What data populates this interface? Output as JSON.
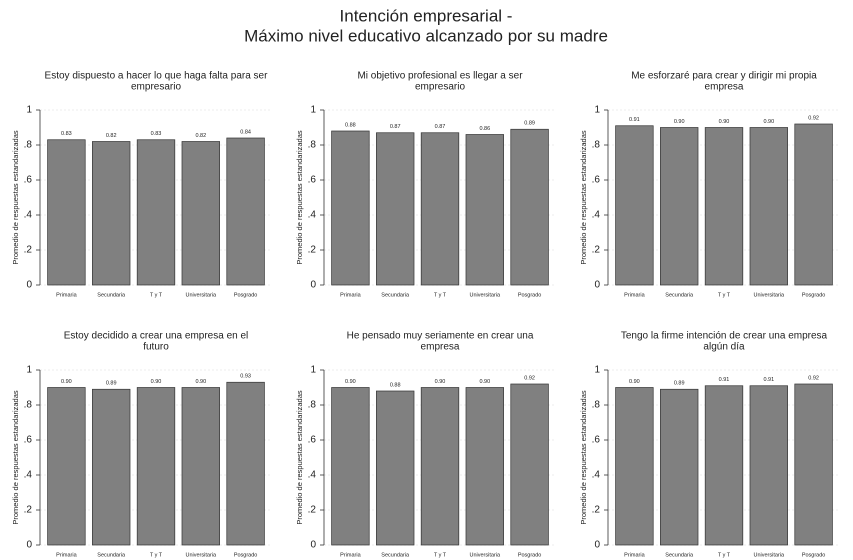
{
  "title": [
    "Intención empresarial -",
    "Máximo nivel educativo alcanzado por su madre"
  ],
  "chart_data": [
    {
      "type": "bar",
      "title": [
        "Estoy dispuesto a hacer lo que haga falta para ser",
        "empresario"
      ],
      "ylabel": "Promedio de respuestas estandarizadas",
      "categories": [
        "Primaria",
        "Secundaria",
        "T y T",
        "Universitaria",
        "Posgrado"
      ],
      "values": [
        0.83,
        0.82,
        0.83,
        0.82,
        0.84
      ],
      "value_labels": [
        "0.83",
        "0.82",
        "0.83",
        "0.82",
        "0.84"
      ],
      "color": "#808080",
      "ylim": [
        0,
        1
      ],
      "yticks": [
        0,
        {
          "value": 0.2,
          "label": ".2"
        },
        {
          "value": 0.4,
          "label": ".4"
        },
        {
          "value": 0.6,
          "label": ".6"
        },
        {
          "value": 0.8,
          "label": ".8"
        },
        1
      ],
      "grid": true
    },
    {
      "type": "bar",
      "title": [
        "Mi objetivo profesional es llegar a ser",
        "empresario"
      ],
      "ylabel": "Promedio de respuestas estandarizadas",
      "categories": [
        "Primaria",
        "Secundaria",
        "T y T",
        "Universitaria",
        "Posgrado"
      ],
      "values": [
        0.88,
        0.87,
        0.87,
        0.86,
        0.89
      ],
      "value_labels": [
        "0.88",
        "0.87",
        "0.87",
        "0.86",
        "0.89"
      ],
      "color": "#808080",
      "ylim": [
        0,
        1
      ],
      "yticks": [
        0,
        {
          "value": 0.2,
          "label": ".2"
        },
        {
          "value": 0.4,
          "label": ".4"
        },
        {
          "value": 0.6,
          "label": ".6"
        },
        {
          "value": 0.8,
          "label": ".8"
        },
        1
      ],
      "grid": true
    },
    {
      "type": "bar",
      "title": [
        "Me esforzaré para crear y dirigir mi propia",
        "empresa"
      ],
      "ylabel": "Promedio de respuestas estandarizadas",
      "categories": [
        "Primaria",
        "Secundaria",
        "T y T",
        "Universitaria",
        "Posgrado"
      ],
      "values": [
        0.91,
        0.9,
        0.9,
        0.9,
        0.92
      ],
      "value_labels": [
        "0.91",
        "0.90",
        "0.90",
        "0.90",
        "0.92"
      ],
      "color": "#808080",
      "ylim": [
        0,
        1
      ],
      "yticks": [
        0,
        {
          "value": 0.2,
          "label": ".2"
        },
        {
          "value": 0.4,
          "label": ".4"
        },
        {
          "value": 0.6,
          "label": ".6"
        },
        {
          "value": 0.8,
          "label": ".8"
        },
        1
      ],
      "grid": true
    },
    {
      "type": "bar",
      "title": [
        "Estoy decidido a crear una empresa en el",
        "futuro"
      ],
      "ylabel": "Promedio de respuestas estandarizadas",
      "categories": [
        "Primaria",
        "Secundaria",
        "T y T",
        "Universitaria",
        "Posgrado"
      ],
      "values": [
        0.9,
        0.89,
        0.9,
        0.9,
        0.93
      ],
      "value_labels": [
        "0.90",
        "0.89",
        "0.90",
        "0.90",
        "0.93"
      ],
      "color": "#808080",
      "ylim": [
        0,
        1
      ],
      "yticks": [
        0,
        {
          "value": 0.2,
          "label": ".2"
        },
        {
          "value": 0.4,
          "label": ".4"
        },
        {
          "value": 0.6,
          "label": ".6"
        },
        {
          "value": 0.8,
          "label": ".8"
        },
        1
      ],
      "grid": true
    },
    {
      "type": "bar",
      "title": [
        "He pensado muy seriamente en crear una",
        "empresa"
      ],
      "ylabel": "Promedio de respuestas estandarizadas",
      "categories": [
        "Primaria",
        "Secundaria",
        "T y T",
        "Universitaria",
        "Posgrado"
      ],
      "values": [
        0.9,
        0.88,
        0.9,
        0.9,
        0.92
      ],
      "value_labels": [
        "0.90",
        "0.88",
        "0.90",
        "0.90",
        "0.92"
      ],
      "color": "#808080",
      "ylim": [
        0,
        1
      ],
      "yticks": [
        0,
        {
          "value": 0.2,
          "label": ".2"
        },
        {
          "value": 0.4,
          "label": ".4"
        },
        {
          "value": 0.6,
          "label": ".6"
        },
        {
          "value": 0.8,
          "label": ".8"
        },
        1
      ],
      "grid": true
    },
    {
      "type": "bar",
      "title": [
        "Tengo la firme intención de crear una empresa",
        "algún día"
      ],
      "ylabel": "Promedio de respuestas estandarizadas",
      "categories": [
        "Primaria",
        "Secundaria",
        "T y T",
        "Universitaria",
        "Posgrado"
      ],
      "values": [
        0.9,
        0.89,
        0.91,
        0.91,
        0.92
      ],
      "value_labels": [
        "0.90",
        "0.89",
        "0.91",
        "0.91",
        "0.92"
      ],
      "color": "#808080",
      "ylim": [
        0,
        1
      ],
      "yticks": [
        0,
        {
          "value": 0.2,
          "label": ".2"
        },
        {
          "value": 0.4,
          "label": ".4"
        },
        {
          "value": 0.6,
          "label": ".6"
        },
        {
          "value": 0.8,
          "label": ".8"
        },
        1
      ],
      "grid": true
    }
  ]
}
